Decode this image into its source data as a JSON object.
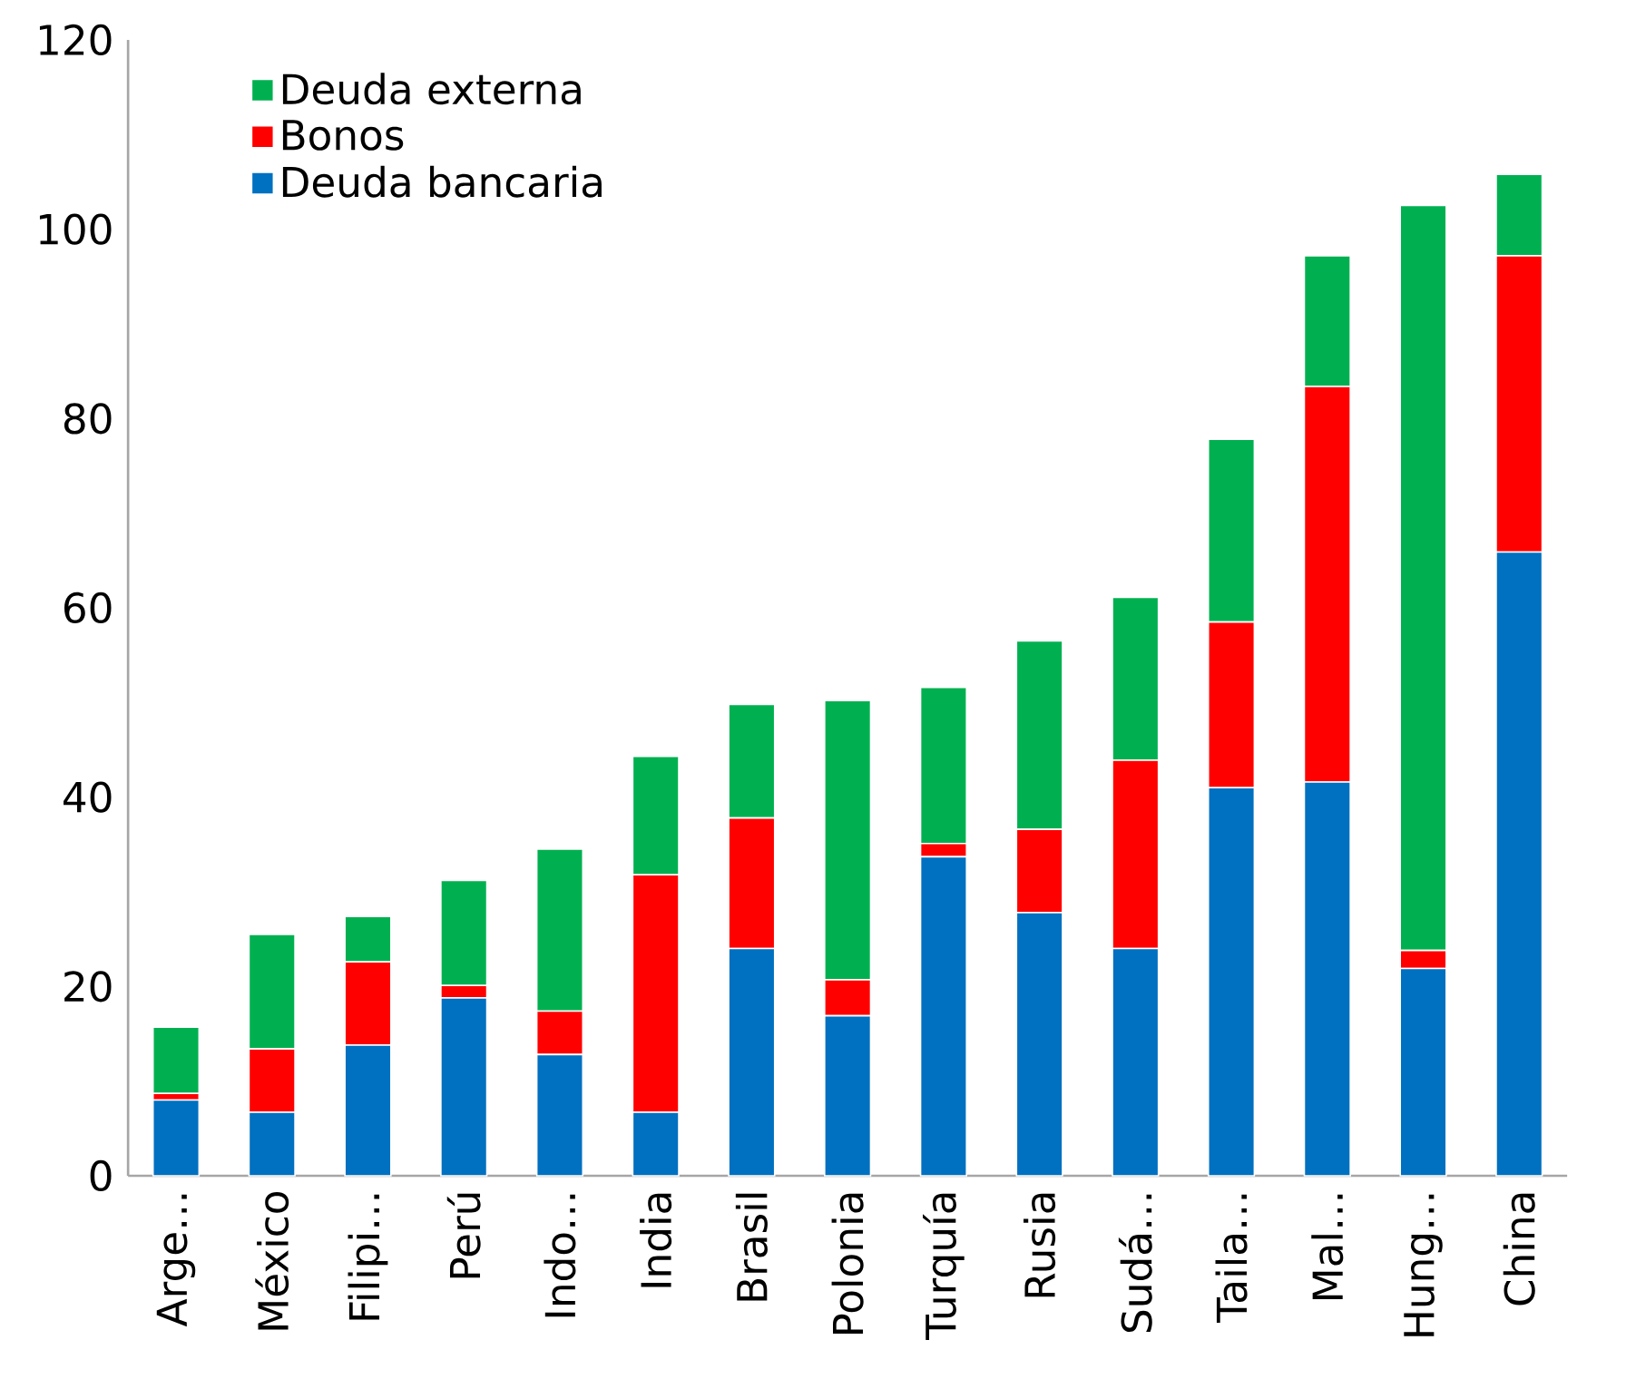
{
  "chart_data": {
    "type": "bar",
    "stacked": true,
    "categories": [
      "Arge…",
      "México",
      "Filipi…",
      "Perú",
      "Indo…",
      "India",
      "Brasil",
      "Polonia",
      "Turquía",
      "Rusia",
      "Sudá…",
      "Taila…",
      "Mal…",
      "Hung…",
      "China"
    ],
    "series": [
      {
        "name": "Deuda bancaria",
        "color": "#0070c0",
        "values": [
          8,
          6.7,
          13.8,
          18.8,
          12.8,
          6.7,
          24,
          16.9,
          33.7,
          27.8,
          24,
          41,
          41.6,
          21.9,
          65.9
        ]
      },
      {
        "name": "Bonos",
        "color": "#ff0000",
        "values": [
          0.7,
          6.7,
          8.8,
          1.3,
          4.6,
          25.1,
          13.8,
          3.8,
          1.4,
          8.8,
          19.9,
          17.5,
          41.8,
          1.9,
          31.3
        ]
      },
      {
        "name": "Deuda externa",
        "color": "#00b050",
        "values": [
          7,
          12.1,
          4.8,
          11.1,
          17.1,
          12.5,
          12,
          29.5,
          16.5,
          19.9,
          17.2,
          19.3,
          13.8,
          78.7,
          8.6
        ]
      }
    ],
    "ylim": [
      0,
      120
    ],
    "yticks": [
      0,
      20,
      40,
      60,
      80,
      100,
      120
    ],
    "grid": false,
    "legend": "top left"
  }
}
